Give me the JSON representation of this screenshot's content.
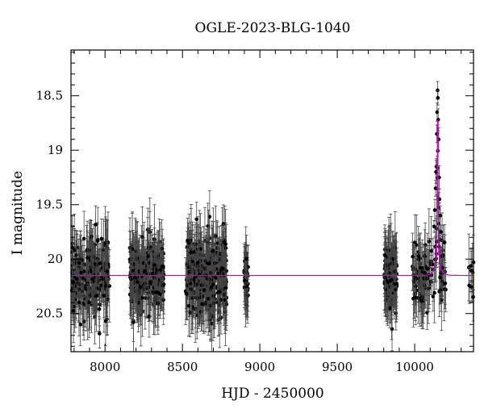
{
  "chart_data": {
    "type": "scatter",
    "title": "OGLE-2023-BLG-1040",
    "xlabel": "HJD - 2450000",
    "ylabel": "I magnitude",
    "xlim": [
      7780,
      10380
    ],
    "ylim": [
      20.85,
      18.08
    ],
    "y_inverted": true,
    "x_ticks": [
      8000,
      8500,
      9000,
      9500,
      10000
    ],
    "x_tick_labels": [
      "8000",
      "8500",
      "9000",
      "9500",
      "10000"
    ],
    "y_ticks": [
      18.5,
      19,
      19.5,
      20,
      20.5
    ],
    "y_tick_labels": [
      "18.5",
      "19",
      "19.5",
      "20",
      "20.5"
    ],
    "grid": false,
    "legend": "none",
    "colors": {
      "data": "#000000",
      "error_bar": "#444444",
      "model": "#cc00cc"
    },
    "series": [
      {
        "kind": "observations",
        "baseline_mag": 20.15,
        "seasons": [
          {
            "start": 7785,
            "end": 8030,
            "scatter": 0.14,
            "count": 240
          },
          {
            "start": 8160,
            "end": 8380,
            "scatter": 0.14,
            "count": 230
          },
          {
            "start": 8520,
            "end": 8785,
            "scatter": 0.16,
            "count": 320
          },
          {
            "start": 8895,
            "end": 8925,
            "scatter": 0.12,
            "count": 35
          },
          {
            "start": 9805,
            "end": 9885,
            "scatter": 0.14,
            "count": 110
          },
          {
            "start": 9985,
            "end": 10205,
            "scatter": 0.14,
            "count": 110
          },
          {
            "start": 10340,
            "end": 10380,
            "scatter": 0.12,
            "count": 8
          }
        ],
        "peak_points": [
          {
            "x": 10148,
            "y": 18.45
          },
          {
            "x": 10150,
            "y": 18.52
          },
          {
            "x": 10145,
            "y": 18.65
          },
          {
            "x": 10152,
            "y": 18.72
          },
          {
            "x": 10143,
            "y": 18.85
          },
          {
            "x": 10155,
            "y": 18.9
          },
          {
            "x": 10140,
            "y": 19.15
          },
          {
            "x": 10138,
            "y": 19.2
          },
          {
            "x": 10158,
            "y": 19.25
          },
          {
            "x": 10135,
            "y": 19.35
          },
          {
            "x": 10160,
            "y": 19.45
          },
          {
            "x": 10130,
            "y": 19.55
          },
          {
            "x": 10165,
            "y": 19.6
          },
          {
            "x": 10125,
            "y": 19.7
          },
          {
            "x": 10170,
            "y": 19.75
          }
        ]
      },
      {
        "kind": "model",
        "baseline_mag": 20.15,
        "t0": 10148,
        "tE": 28,
        "u0": 0.04,
        "blend_fs": 0.12
      }
    ]
  }
}
